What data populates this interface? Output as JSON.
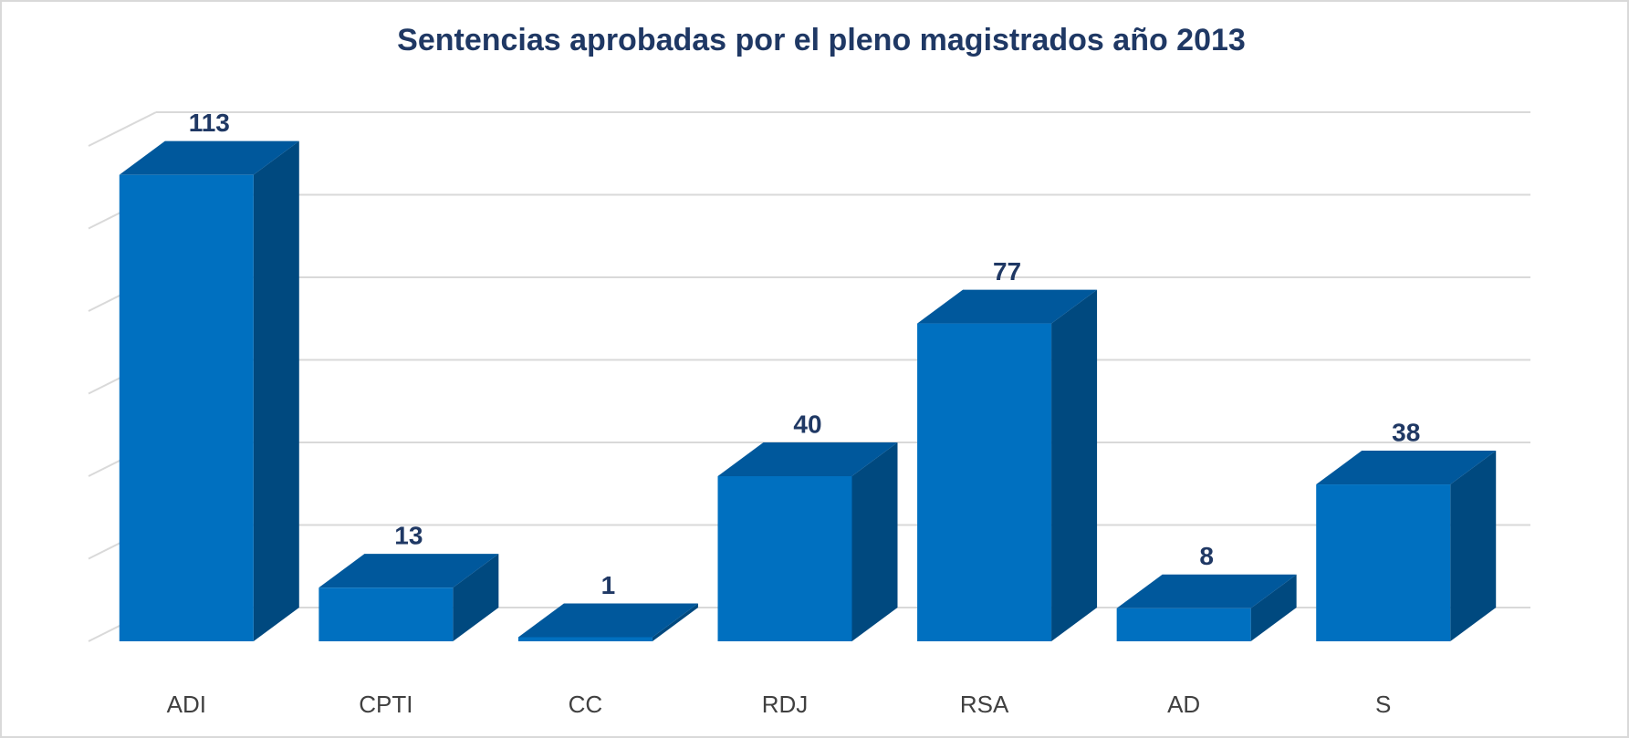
{
  "chart_data": {
    "type": "bar3d",
    "title": "Sentencias aprobadas por el pleno magistrados año 2013",
    "categories": [
      "ADI",
      "CPTI",
      "CC",
      "RDJ",
      "RSA",
      "AD",
      "S"
    ],
    "values": [
      113,
      13,
      1,
      40,
      77,
      8,
      38
    ],
    "color": "#0070c0",
    "top_color": "#00589c",
    "side_color": "#00497f",
    "ylim": [
      0,
      120
    ],
    "yticks": [
      0,
      20,
      40,
      60,
      80,
      100,
      120
    ],
    "grid": true
  }
}
